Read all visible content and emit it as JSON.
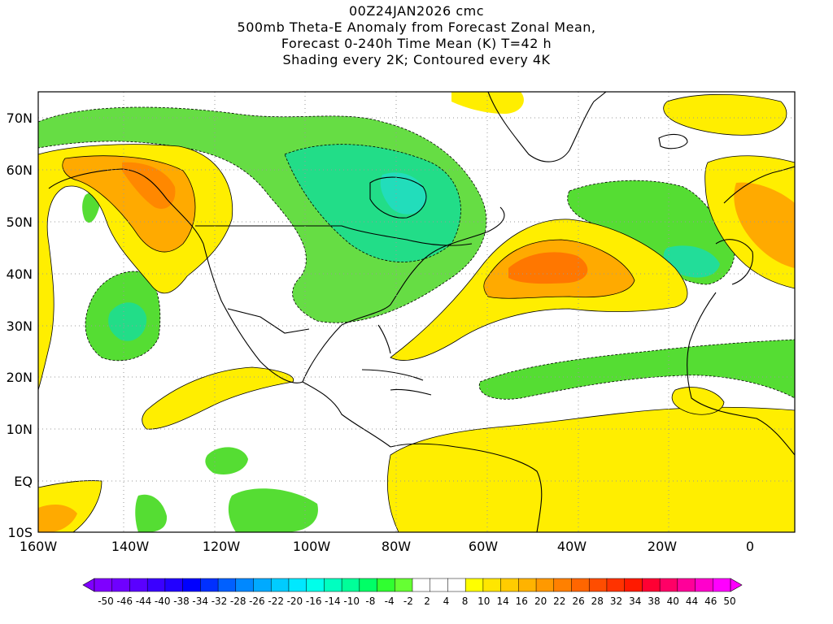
{
  "title": {
    "line1": "00Z24JAN2026 cmc",
    "line2": "500mb Theta-E Anomaly from Forecast Zonal Mean,",
    "line3": "Forecast 0-240h Time Mean (K) T=42 h",
    "line4": "Shading every 2K; Contoured every 4K"
  },
  "axes": {
    "x_ticks": [
      "160W",
      "140W",
      "120W",
      "100W",
      "80W",
      "60W",
      "40W",
      "20W",
      "0"
    ],
    "y_ticks": [
      "70N",
      "60N",
      "50N",
      "40N",
      "30N",
      "20N",
      "10N",
      "EQ",
      "10S"
    ]
  },
  "colorbar": {
    "labels": [
      "-50",
      "-46",
      "-44",
      "-40",
      "-38",
      "-34",
      "-32",
      "-28",
      "-26",
      "-22",
      "-20",
      "-16",
      "-14",
      "-10",
      "-8",
      "-4",
      "-2",
      "2",
      "4",
      "8",
      "10",
      "14",
      "16",
      "20",
      "22",
      "26",
      "28",
      "32",
      "34",
      "38",
      "40",
      "44",
      "46",
      "50"
    ],
    "colors": [
      "#7f00ff",
      "#6f00ff",
      "#5a00ff",
      "#3a00ff",
      "#2200ff",
      "#0000ff",
      "#0030ff",
      "#0060ff",
      "#0088ff",
      "#00aaff",
      "#00ccff",
      "#00e8ff",
      "#00ffea",
      "#00ffc0",
      "#00ff99",
      "#00ff66",
      "#30ff30",
      "#66ff33",
      "#ffffff",
      "#ffffff",
      "#ffffff",
      "#ffff00",
      "#ffe600",
      "#ffcc00",
      "#ffb300",
      "#ff9900",
      "#ff8000",
      "#ff6600",
      "#ff4d00",
      "#ff3300",
      "#ff1a00",
      "#ff0033",
      "#ff0066",
      "#ff0099",
      "#ff00cc",
      "#ff00ff"
    ]
  }
}
